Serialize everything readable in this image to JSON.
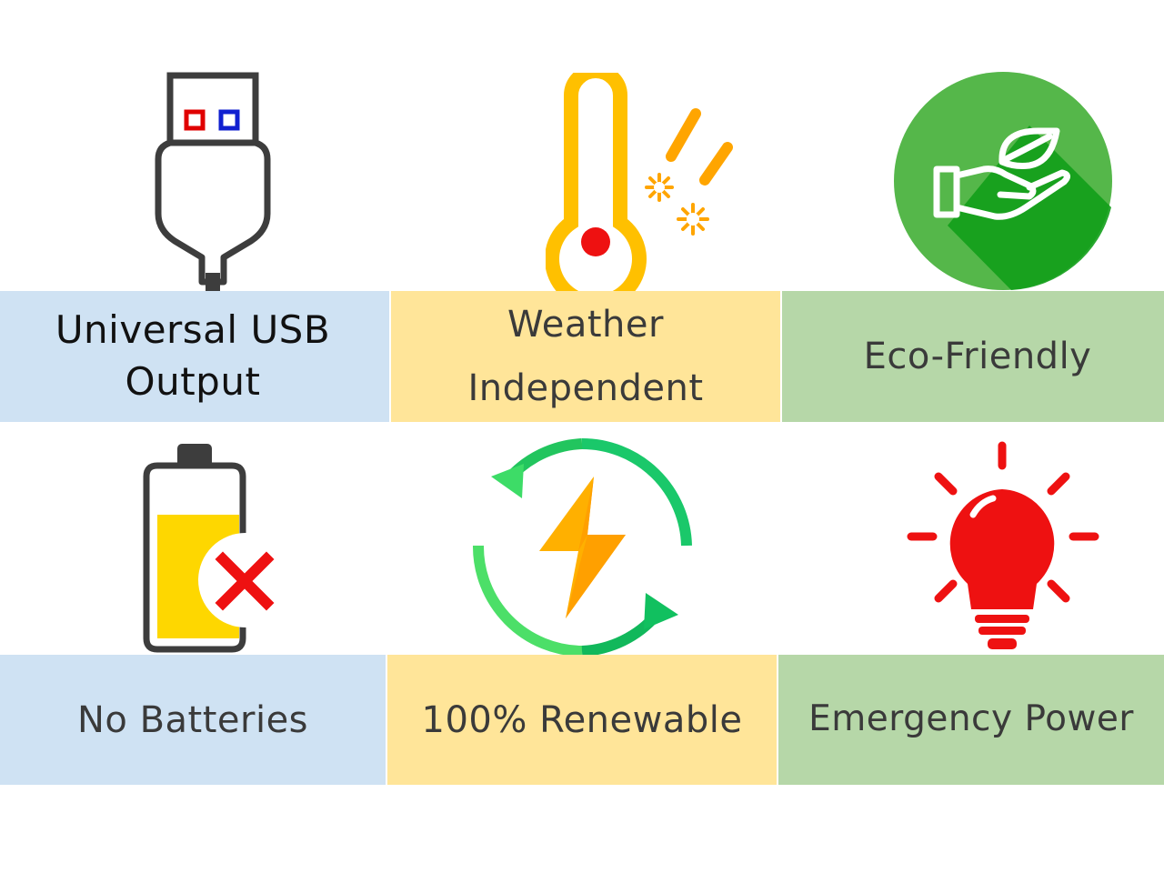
{
  "features": [
    {
      "label_lines": [
        "Universal USB",
        "Output"
      ],
      "icon": "usb-plug-icon"
    },
    {
      "label_lines": [
        "Weather",
        "Independent"
      ],
      "icon": "thermometer-weather-icon"
    },
    {
      "label_lines": [
        "Eco-Friendly"
      ],
      "icon": "eco-hand-leaf-icon"
    },
    {
      "label_lines": [
        "No Batteries"
      ],
      "icon": "no-battery-icon"
    },
    {
      "label_lines": [
        "100% Renewable"
      ],
      "icon": "renewable-energy-icon"
    },
    {
      "label_lines": [
        "Emergency Power"
      ],
      "icon": "light-bulb-icon"
    }
  ],
  "colors": {
    "blue_band": "#cfe2f3",
    "yellow_band": "#ffe599",
    "green_band": "#b6d7a8"
  }
}
